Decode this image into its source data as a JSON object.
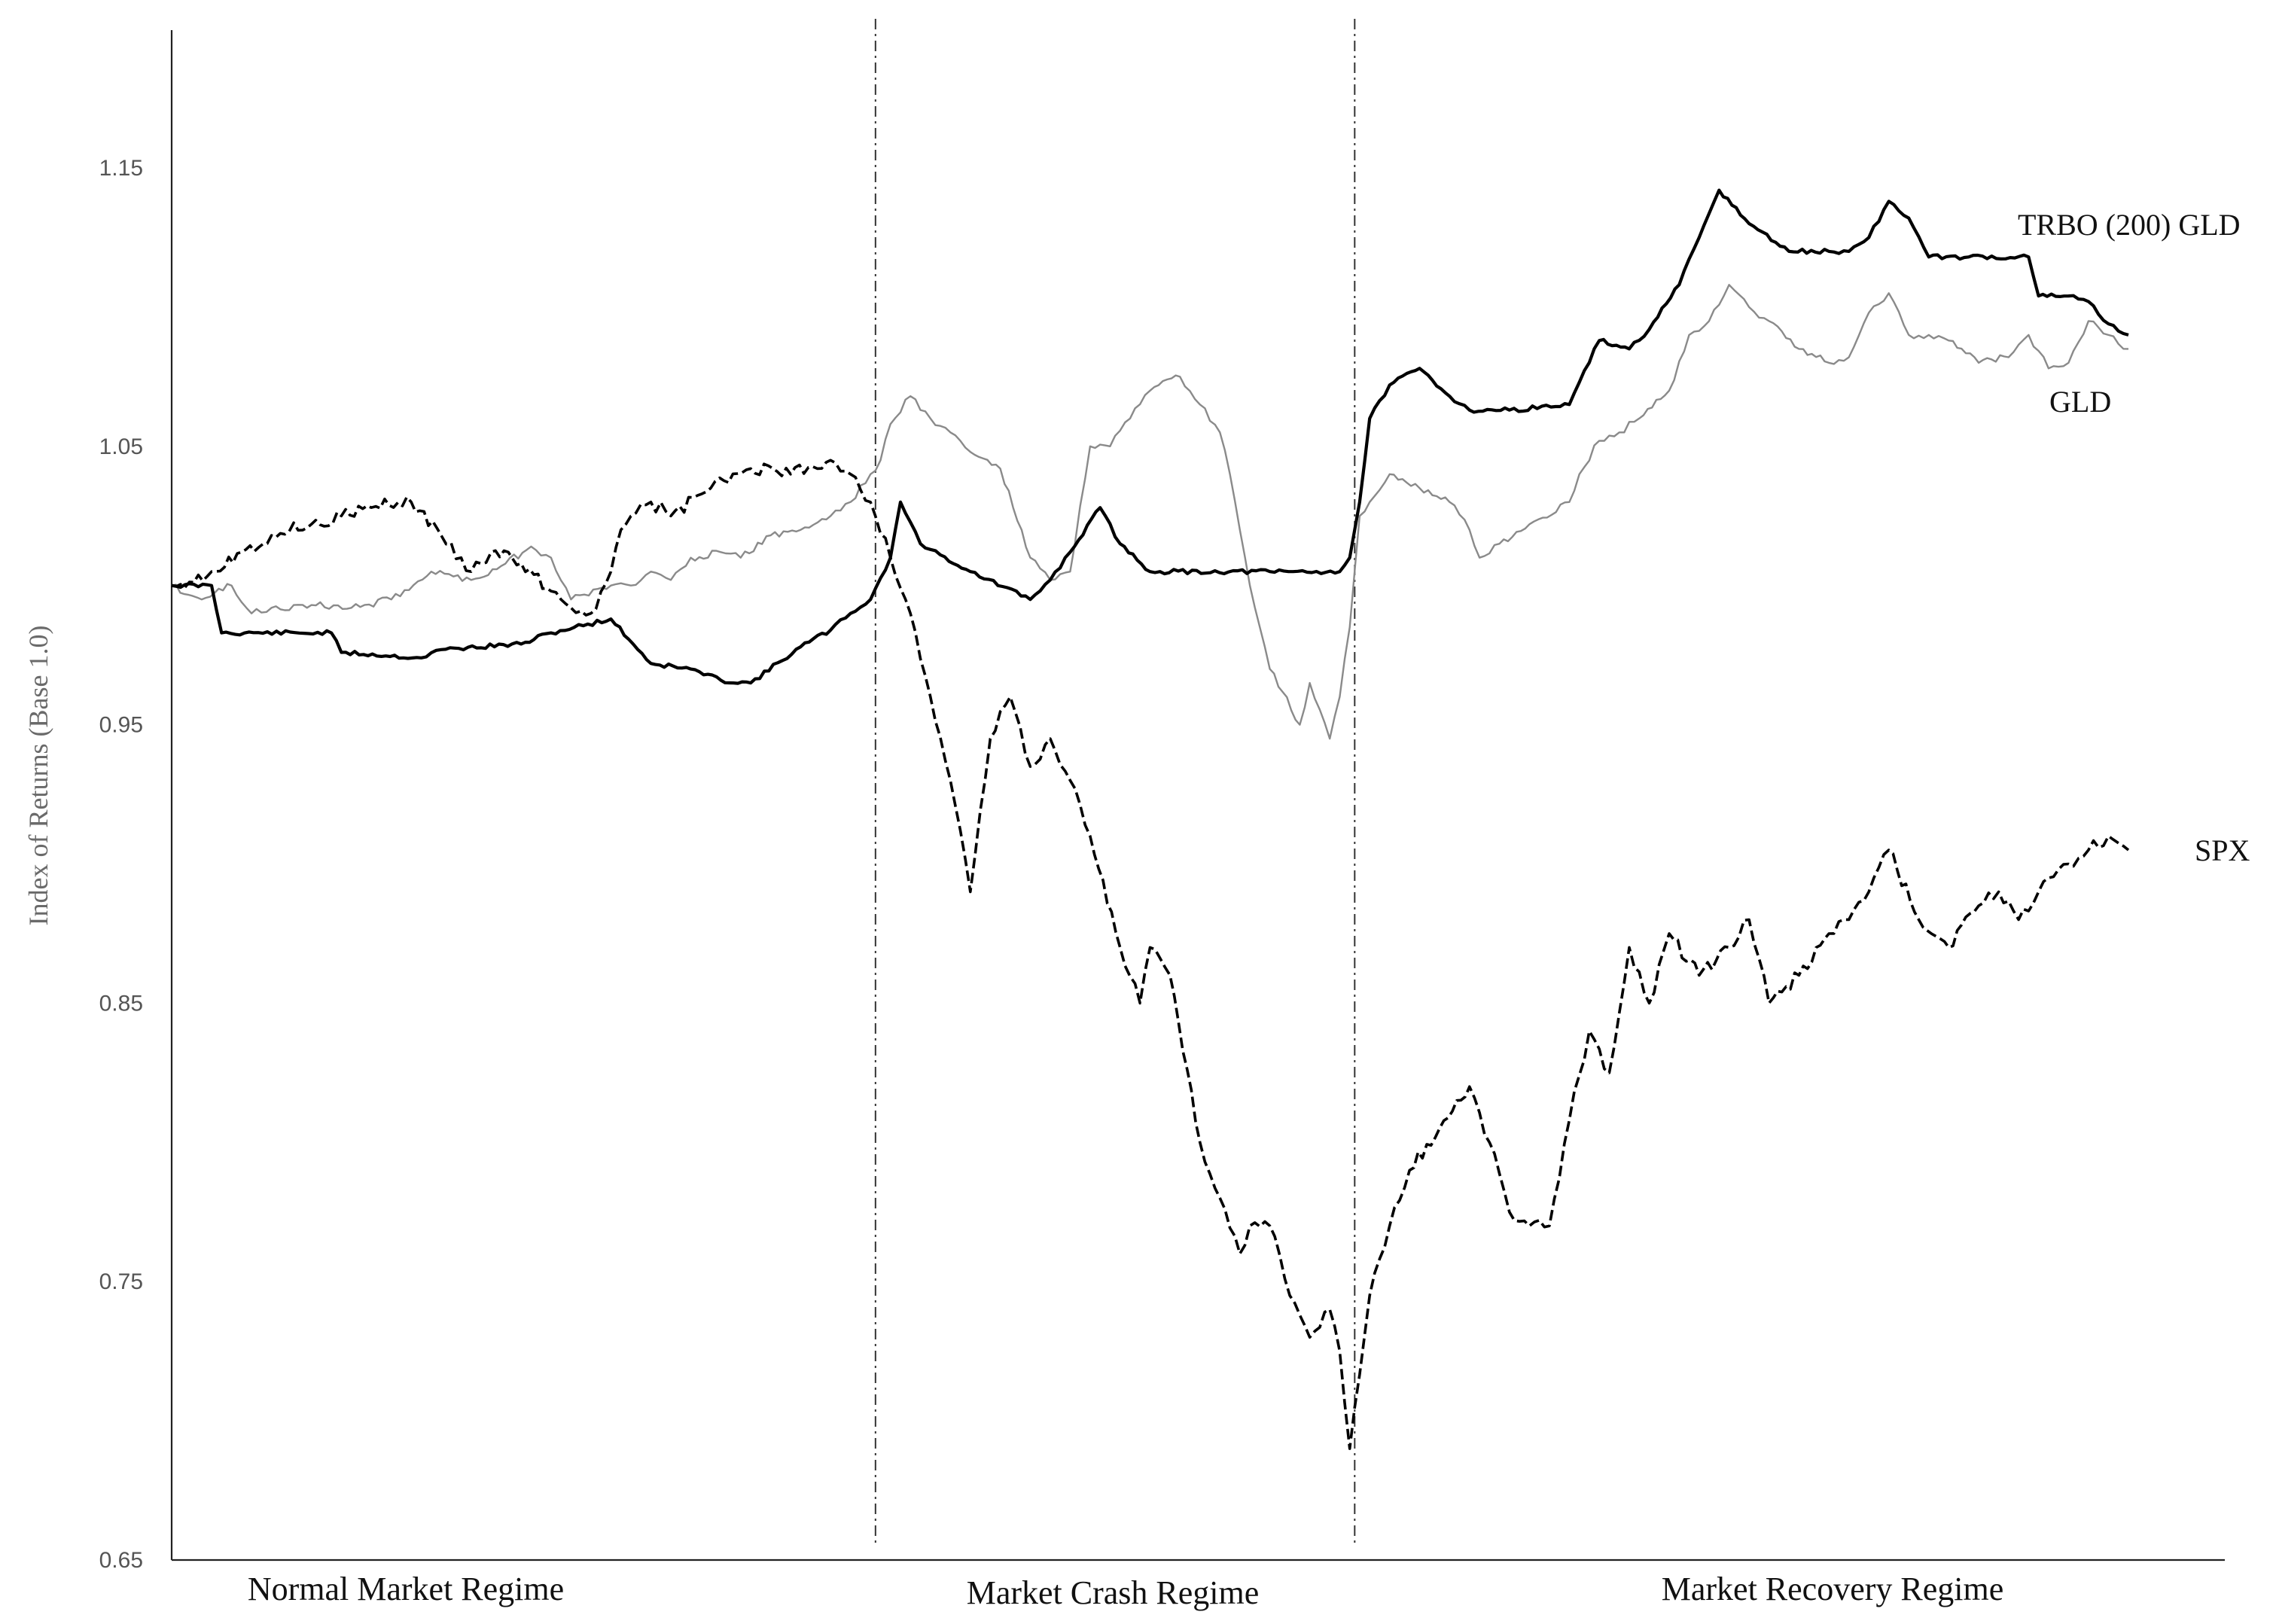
{
  "chart_data": {
    "type": "line",
    "title": "",
    "ylabel": "Index of Returns (Base 1.0)",
    "xlabel": "",
    "ylim": [
      0.65,
      1.2
    ],
    "yticks": [
      "0.65",
      "0.75",
      "0.85",
      "0.95",
      "1.05",
      "1.15"
    ],
    "grid": false,
    "x_range": [
      0,
      200
    ],
    "regime_boundaries": [
      70.5,
      118.5
    ],
    "regimes": [
      "Normal Market Regime",
      "Market Crash Regime",
      "Market Recovery Regime"
    ],
    "colors": {
      "TRBO (200) GLD": "#000000",
      "GLD": "#8a8a8a",
      "SPX": "#000000"
    },
    "series": [
      {
        "name": "TRBO (200) GLD",
        "style": "solid-thick",
        "x": [
          0,
          4,
          5,
          16,
          17,
          25,
          27,
          35,
          38,
          44,
          48,
          52,
          55,
          58,
          63,
          66,
          68,
          70,
          72,
          73,
          75,
          77,
          80,
          86,
          88,
          90,
          93,
          95,
          98,
          99,
          110,
          117,
          118,
          119,
          120,
          122,
          125,
          128,
          130,
          134,
          140,
          141,
          143,
          146,
          148,
          151,
          153,
          155,
          158,
          162,
          166,
          168,
          170,
          172,
          174,
          176,
          180,
          186,
          187,
          190,
          192,
          194,
          196
        ],
        "y": [
          1.0,
          1.0,
          0.983,
          0.983,
          0.976,
          0.974,
          0.977,
          0.979,
          0.983,
          0.988,
          0.972,
          0.97,
          0.966,
          0.965,
          0.978,
          0.984,
          0.99,
          0.995,
          1.01,
          1.03,
          1.015,
          1.011,
          1.005,
          0.995,
          1.002,
          1.012,
          1.028,
          1.015,
          1.005,
          1.005,
          1.005,
          1.005,
          1.01,
          1.03,
          1.06,
          1.072,
          1.078,
          1.068,
          1.063,
          1.063,
          1.065,
          1.073,
          1.088,
          1.085,
          1.092,
          1.108,
          1.125,
          1.142,
          1.13,
          1.12,
          1.12,
          1.12,
          1.125,
          1.138,
          1.132,
          1.118,
          1.118,
          1.118,
          1.104,
          1.104,
          1.102,
          1.094,
          1.09
        ]
      },
      {
        "name": "GLD",
        "style": "solid-thin-gray",
        "x": [
          0,
          3,
          6,
          8,
          10,
          14,
          18,
          22,
          26,
          30,
          33,
          36,
          38,
          40,
          44,
          46,
          48,
          50,
          52,
          55,
          57,
          60,
          63,
          66,
          68,
          70,
          71,
          72,
          74,
          76,
          78,
          80,
          83,
          86,
          88,
          90,
          92,
          94,
          96,
          98,
          101,
          103,
          105,
          106,
          108,
          110,
          113,
          114,
          116,
          117,
          118,
          119,
          120,
          122,
          125,
          128,
          130,
          131,
          133,
          136,
          140,
          141,
          143,
          145,
          147,
          150,
          152,
          154,
          156,
          158,
          160,
          163,
          166,
          168,
          170,
          172,
          174,
          176,
          178,
          181,
          184,
          186,
          188,
          190,
          192,
          194,
          196
        ],
        "y": [
          1.0,
          0.995,
          1.0,
          0.99,
          0.992,
          0.993,
          0.992,
          0.995,
          1.005,
          1.002,
          1.007,
          1.014,
          1.01,
          0.995,
          1.0,
          1.0,
          1.005,
          1.002,
          1.01,
          1.012,
          1.01,
          1.018,
          1.02,
          1.025,
          1.03,
          1.04,
          1.045,
          1.058,
          1.068,
          1.06,
          1.055,
          1.048,
          1.042,
          1.01,
          1.002,
          1.005,
          1.05,
          1.05,
          1.06,
          1.07,
          1.075,
          1.065,
          1.055,
          1.04,
          1.0,
          0.97,
          0.95,
          0.965,
          0.945,
          0.96,
          0.985,
          1.025,
          1.03,
          1.04,
          1.035,
          1.03,
          1.02,
          1.01,
          1.015,
          1.022,
          1.03,
          1.04,
          1.052,
          1.055,
          1.06,
          1.07,
          1.09,
          1.095,
          1.108,
          1.1,
          1.095,
          1.085,
          1.08,
          1.082,
          1.098,
          1.105,
          1.09,
          1.09,
          1.088,
          1.08,
          1.082,
          1.09,
          1.078,
          1.08,
          1.095,
          1.09,
          1.085
        ]
      },
      {
        "name": "SPX",
        "style": "dashed",
        "x": [
          0,
          4,
          7,
          10,
          14,
          17,
          20,
          24,
          27,
          29,
          30,
          32,
          35,
          38,
          40,
          42,
          44,
          45,
          46,
          48,
          50,
          54,
          58,
          62,
          66,
          68,
          70,
          72,
          74,
          76,
          78,
          80,
          82,
          84,
          86,
          88,
          90,
          92,
          95,
          97,
          98,
          100,
          103,
          105,
          107,
          108,
          110,
          112,
          114,
          116,
          117,
          118,
          120,
          122,
          124,
          127,
          130,
          132,
          134,
          136,
          138,
          140,
          142,
          144,
          146,
          148,
          150,
          153,
          156,
          158,
          160,
          163,
          166,
          168,
          170,
          172,
          175,
          178,
          181,
          183,
          185,
          187,
          188,
          190,
          192,
          194,
          196
        ],
        "y": [
          1.0,
          1.005,
          1.012,
          1.018,
          1.022,
          1.025,
          1.028,
          1.03,
          1.018,
          1.01,
          1.005,
          1.012,
          1.008,
          0.998,
          0.992,
          0.99,
          1.005,
          1.02,
          1.025,
          1.03,
          1.025,
          1.035,
          1.042,
          1.04,
          1.045,
          1.04,
          1.03,
          1.01,
          0.99,
          0.96,
          0.93,
          0.89,
          0.945,
          0.96,
          0.935,
          0.945,
          0.93,
          0.91,
          0.87,
          0.85,
          0.87,
          0.86,
          0.8,
          0.78,
          0.76,
          0.77,
          0.77,
          0.745,
          0.73,
          0.74,
          0.725,
          0.69,
          0.745,
          0.77,
          0.79,
          0.805,
          0.82,
          0.8,
          0.775,
          0.77,
          0.77,
          0.808,
          0.84,
          0.825,
          0.87,
          0.85,
          0.875,
          0.86,
          0.87,
          0.88,
          0.85,
          0.86,
          0.875,
          0.88,
          0.89,
          0.905,
          0.88,
          0.87,
          0.885,
          0.89,
          0.88,
          0.89,
          0.895,
          0.9,
          0.905,
          0.91,
          0.905
        ]
      }
    ]
  }
}
